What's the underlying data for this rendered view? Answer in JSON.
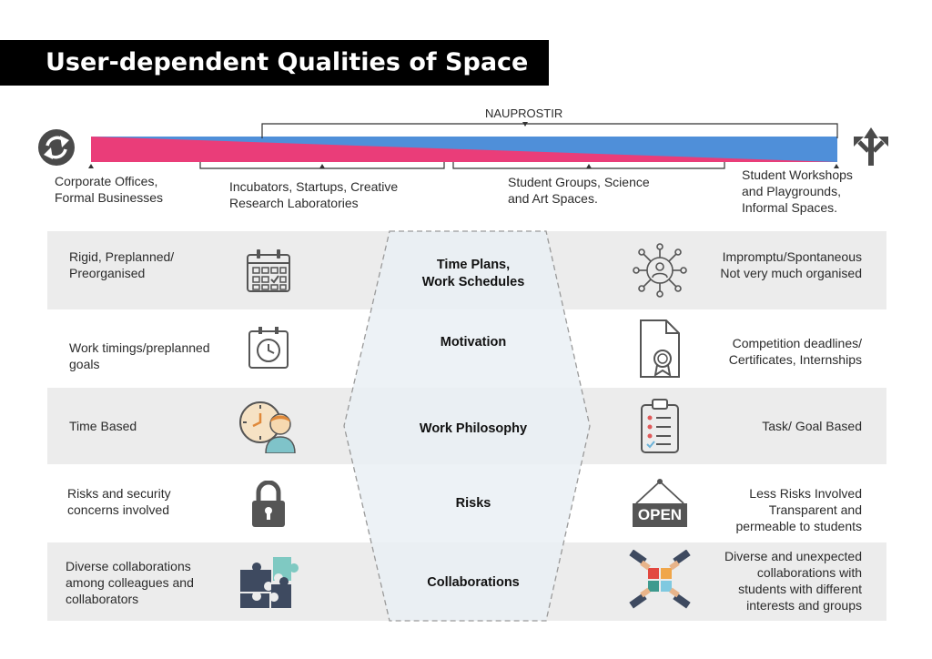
{
  "title": "User-dependent Qualities of Space",
  "spectrum": {
    "nauprostir_label": "NAUPROSTIR",
    "left_icon": "refresh-cycle-icon",
    "right_icon": "branching-arrows-icon",
    "colors": {
      "pink": "#ea3d79",
      "blue": "#4f8fd9"
    },
    "stages": [
      {
        "line1": "Corporate Offices,",
        "line2": "Formal Businesses",
        "line3": ""
      },
      {
        "line1": "Incubators, Startups, Creative",
        "line2": "Research Laboratories",
        "line3": ""
      },
      {
        "line1": "Student Groups, Science",
        "line2": "and Art Spaces.",
        "line3": ""
      },
      {
        "line1": "Student Workshops",
        "line2": "and Playgrounds,",
        "line3": "Informal Spaces."
      }
    ]
  },
  "rows": [
    {
      "category": [
        "Time Plans,",
        "Work Schedules"
      ],
      "left": [
        "Rigid, Preplanned/",
        "Preorganised"
      ],
      "left_icon": "calendar-icon",
      "right": [
        "Impromptu/Spontaneous",
        "Not very much organised"
      ],
      "right_icon": "network-person-icon"
    },
    {
      "category": [
        "Motivation"
      ],
      "left": [
        "Work timings/preplanned",
        "goals"
      ],
      "left_icon": "clock-icon",
      "right": [
        "Competition deadlines/",
        "Certificates, Internships"
      ],
      "right_icon": "certificate-icon"
    },
    {
      "category": [
        "Work Philosophy"
      ],
      "left": [
        "Time Based"
      ],
      "left_icon": "clock-person-icon",
      "right": [
        "Task/ Goal Based"
      ],
      "right_icon": "checklist-icon"
    },
    {
      "category": [
        "Risks"
      ],
      "left": [
        "Risks and security",
        "concerns involved"
      ],
      "left_icon": "padlock-icon",
      "right": [
        "Less Risks Involved",
        "Transparent and",
        "permeable to students"
      ],
      "right_icon": "open-sign-icon",
      "open_sign_text": "OPEN"
    },
    {
      "category": [
        "Collaborations"
      ],
      "left": [
        "Diverse collaborations",
        "among colleagues and",
        "collaborators"
      ],
      "left_icon": "puzzle-pieces-icon",
      "right": [
        "Diverse and unexpected",
        "collaborations with",
        "students with different",
        "interests and groups"
      ],
      "right_icon": "hands-puzzle-icon"
    }
  ]
}
